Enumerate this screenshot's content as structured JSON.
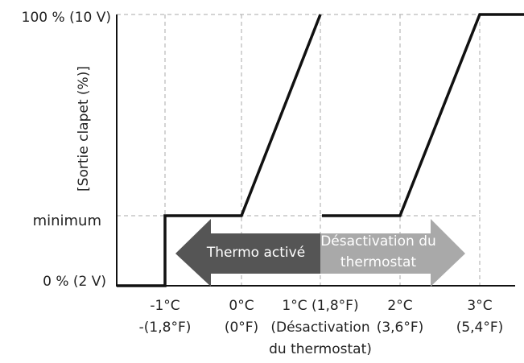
{
  "y_axis": {
    "title": "[Sortie clapet (%)]",
    "labels": [
      "100 % (10 V)",
      "minimum",
      "0 % (2 V)"
    ]
  },
  "x_axis": {
    "labels": [
      [
        "-1°C",
        "-(1,8°F)"
      ],
      [
        "0°C",
        "(0°F)"
      ],
      [
        "1°C (1,8°F)",
        "(Désactivation",
        "du thermostat)"
      ],
      [
        "2°C",
        "(3,6°F)"
      ],
      [
        "3°C",
        "(5,4°F)"
      ]
    ]
  },
  "arrows": {
    "left": [
      "Thermo activé"
    ],
    "right": [
      "Désactivation du",
      "thermostat"
    ]
  }
}
